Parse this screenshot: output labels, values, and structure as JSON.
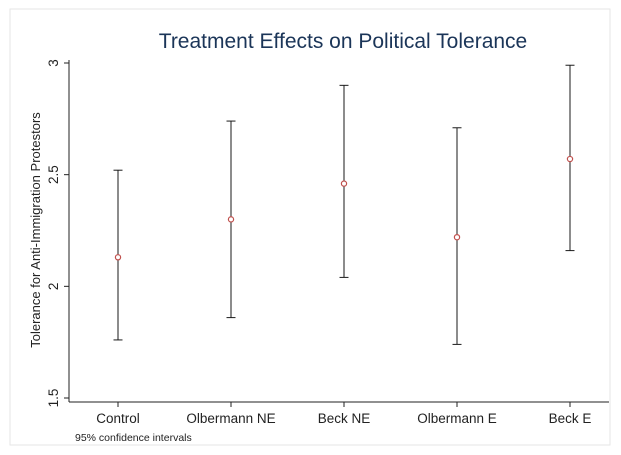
{
  "chart_data": {
    "type": "errorbar",
    "title": "Treatment Effects on Political Tolerance",
    "xlabel": "",
    "ylabel": "Tolerance for Anti-Immigration Protestors",
    "note": "95% confidence intervals",
    "categories": [
      "Control",
      "Olbermann NE",
      "Beck NE",
      "Olbermann E",
      "Beck E"
    ],
    "estimates": [
      2.13,
      2.3,
      2.46,
      2.22,
      2.57
    ],
    "ci_lower": [
      1.76,
      1.86,
      2.04,
      1.74,
      2.16
    ],
    "ci_upper": [
      2.52,
      2.74,
      2.9,
      2.71,
      2.99
    ],
    "yticks": [
      1.5,
      2,
      2.5,
      3
    ],
    "ytick_labels": [
      "1.5",
      "2",
      "2.5",
      "3"
    ],
    "ylim": [
      1.5,
      3.0
    ],
    "grid": false,
    "colors": {
      "title": "#1b3558",
      "marker": "#c0504d",
      "errorbar": "#1a1a1a",
      "axis": "#222222"
    }
  }
}
